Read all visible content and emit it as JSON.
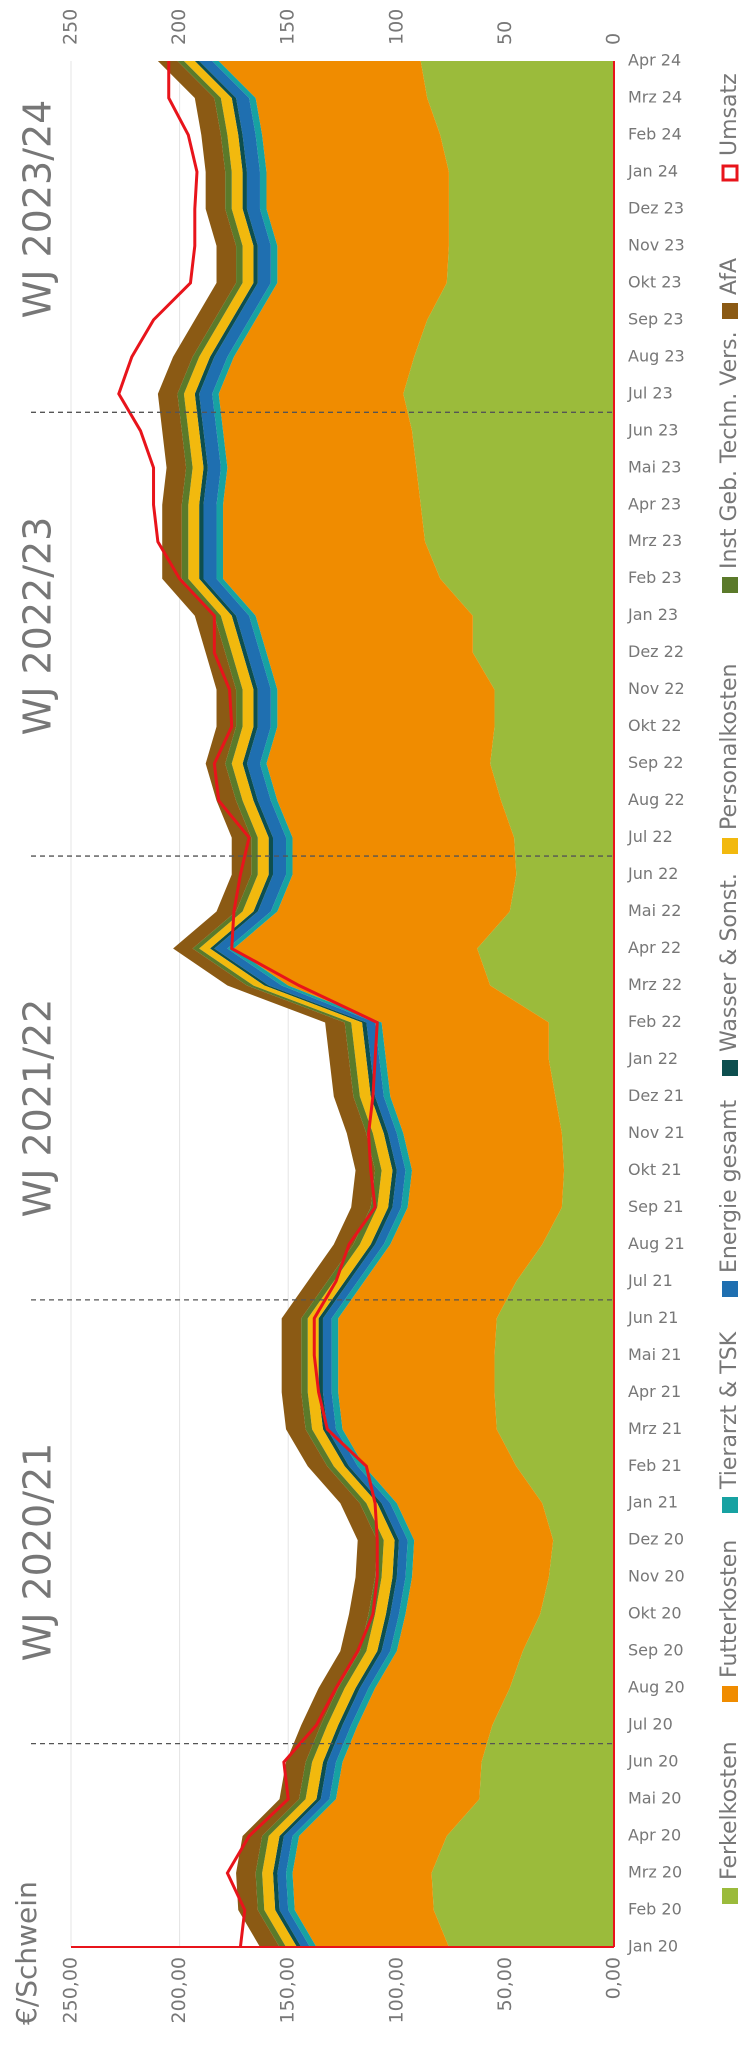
{
  "chart_data": {
    "type": "stacked_area",
    "axis_label": "€/Schwein",
    "annotations": [
      "WJ 2020/21",
      "WJ 2021/22",
      "WJ 2022/23",
      "WJ 2023/24"
    ],
    "categories": [
      "Jan 20",
      "Feb 20",
      "Mrz 20",
      "Apr 20",
      "Mai 20",
      "Jun 20",
      "Jul 20",
      "Aug 20",
      "Sep 20",
      "Okt 20",
      "Nov 20",
      "Dez 20",
      "Jan 21",
      "Feb 21",
      "Mrz 21",
      "Apr 21",
      "Mai 21",
      "Jun 21",
      "Jul 21",
      "Aug 21",
      "Sep 21",
      "Okt 21",
      "Nov 21",
      "Dez 21",
      "Jan 22",
      "Feb 22",
      "Mrz 22",
      "Apr 22",
      "Mai 22",
      "Jun 22",
      "Jul 22",
      "Aug 22",
      "Sep 22",
      "Okt 22",
      "Nov 22",
      "Dez 22",
      "Jan 23",
      "Feb 23",
      "Mrz 23",
      "Apr 23",
      "Mai 23",
      "Jun 23",
      "Jul 23",
      "Aug 23",
      "Sep 23",
      "Okt 23",
      "Nov 23",
      "Dez 23",
      "Jan 24",
      "Feb 24",
      "Mrz 24",
      "Apr 24"
    ],
    "series": [
      {
        "name": "Ferkelkosten",
        "color": "#9bbb3b",
        "values": [
          76,
          83,
          84,
          77,
          62,
          61,
          56,
          48,
          42,
          34,
          30,
          28,
          33,
          45,
          54,
          55,
          55,
          54,
          45,
          33,
          24,
          23,
          24,
          27,
          30,
          30,
          57,
          63,
          48,
          45,
          46,
          52,
          57,
          55,
          55,
          65,
          65,
          80,
          87,
          89,
          91,
          93,
          97,
          92,
          86,
          77,
          76,
          76,
          76,
          80,
          86,
          89
        ]
      },
      {
        "name": "Futterkosten",
        "color": "#f08c00",
        "values": [
          61,
          64,
          64,
          68,
          66,
          64,
          62,
          62,
          58,
          62,
          63,
          64,
          67,
          70,
          71,
          72,
          72,
          73,
          70,
          70,
          71,
          70,
          73,
          76,
          75,
          77,
          93,
          112,
          107,
          103,
          102,
          103,
          103,
          100,
          100,
          95,
          100,
          100,
          93,
          91,
          87,
          87,
          85,
          83,
          79,
          78,
          79,
          84,
          84,
          82,
          79,
          93
        ]
      },
      {
        "name": "Tierarzt & TSK",
        "color": "#17a2a2",
        "values": [
          3,
          3,
          3,
          3,
          3,
          3,
          3,
          3,
          3,
          3,
          3,
          3,
          3,
          3,
          3,
          3,
          3,
          3,
          3,
          3,
          3,
          3,
          3,
          3,
          3,
          3,
          3,
          3,
          3,
          3,
          3,
          3,
          3,
          3,
          3,
          3,
          3,
          3,
          3,
          3,
          3,
          3,
          3,
          3,
          3,
          3,
          3,
          3,
          3,
          3,
          3,
          3
        ]
      },
      {
        "name": "Energie gesamt",
        "color": "#1f6fb0",
        "values": [
          4,
          4,
          4,
          4,
          4,
          4,
          4,
          4,
          4,
          4,
          4,
          4,
          4,
          4,
          4,
          4,
          4,
          4,
          4,
          4,
          4,
          4,
          4,
          4,
          4,
          4,
          6,
          6,
          6,
          6,
          6,
          6,
          6,
          6,
          6,
          6,
          6,
          6,
          6,
          6,
          6,
          6,
          6,
          6,
          6,
          6,
          6,
          6,
          6,
          6,
          6,
          6
        ]
      },
      {
        "name": "Wasser & Sonst.",
        "color": "#0d4f4f",
        "values": [
          2,
          2,
          2,
          2,
          2,
          2,
          2,
          2,
          2,
          2,
          2,
          2,
          2,
          2,
          2,
          2,
          2,
          2,
          2,
          2,
          2,
          2,
          2,
          2,
          2,
          2,
          2,
          2,
          2,
          2,
          2,
          2,
          2,
          2,
          2,
          2,
          2,
          2,
          2,
          2,
          2,
          2,
          2,
          2,
          2,
          2,
          2,
          2,
          2,
          2,
          2,
          2
        ]
      },
      {
        "name": "Personalkosten",
        "color": "#f2b90e",
        "values": [
          5,
          5,
          5,
          5,
          5,
          5,
          5,
          5,
          5,
          5,
          5,
          5,
          5,
          5,
          5,
          5,
          5,
          5,
          5,
          5,
          5,
          5,
          5,
          5,
          5,
          5,
          5,
          5,
          5,
          5,
          5,
          5,
          5,
          5,
          5,
          5,
          5,
          5,
          5,
          5,
          5,
          5,
          5,
          5,
          5,
          5,
          5,
          5,
          5,
          5,
          5,
          5
        ]
      },
      {
        "name": "Inst Geb. Techn. Vers.",
        "color": "#5b7a2a",
        "values": [
          3,
          3,
          3,
          3,
          3,
          3,
          3,
          3,
          3,
          3,
          3,
          3,
          3,
          3,
          3,
          3,
          3,
          3,
          3,
          3,
          3,
          3,
          3,
          3,
          3,
          3,
          3,
          3,
          3,
          3,
          3,
          3,
          3,
          3,
          3,
          3,
          3,
          3,
          3,
          3,
          3,
          3,
          3,
          3,
          3,
          3,
          3,
          3,
          3,
          3,
          3,
          3
        ]
      },
      {
        "name": "AfA",
        "color": "#8b5a14",
        "values": [
          9,
          9,
          9,
          9,
          9,
          9,
          9,
          9,
          9,
          9,
          9,
          9,
          9,
          9,
          9,
          9,
          9,
          9,
          9,
          9,
          9,
          9,
          9,
          9,
          9,
          9,
          9,
          9,
          9,
          9,
          9,
          9,
          9,
          9,
          9,
          9,
          9,
          9,
          9,
          9,
          9,
          9,
          9,
          9,
          9,
          9,
          9,
          9,
          9,
          9,
          9,
          9
        ]
      },
      {
        "name": "Umsatz",
        "color": "#e8141b",
        "line": true,
        "values": [
          172,
          170,
          178,
          168,
          150,
          152,
          137,
          128,
          118,
          111,
          109,
          109,
          110,
          114,
          132,
          136,
          138,
          138,
          128,
          122,
          110,
          112,
          113,
          111,
          110,
          109,
          145,
          176,
          175,
          172,
          168,
          182,
          184,
          176,
          177,
          184,
          184,
          200,
          210,
          212,
          212,
          218,
          228,
          222,
          212,
          195,
          193,
          193,
          192,
          196,
          205,
          205
        ]
      }
    ],
    "ylim": [
      0,
      250
    ],
    "yticks": [
      {
        "value": 0,
        "label": "0,00"
      },
      {
        "value": 50,
        "label": "50,00"
      },
      {
        "value": 100,
        "label": "100,00"
      },
      {
        "value": 150,
        "label": "150,00"
      },
      {
        "value": 200,
        "label": "200,00"
      },
      {
        "value": 250,
        "label": "250,00"
      }
    ],
    "y2lim": [
      0,
      250
    ],
    "y2ticks": [
      0,
      50,
      100,
      150,
      200,
      250
    ],
    "grid": true,
    "legend": "bottom"
  }
}
